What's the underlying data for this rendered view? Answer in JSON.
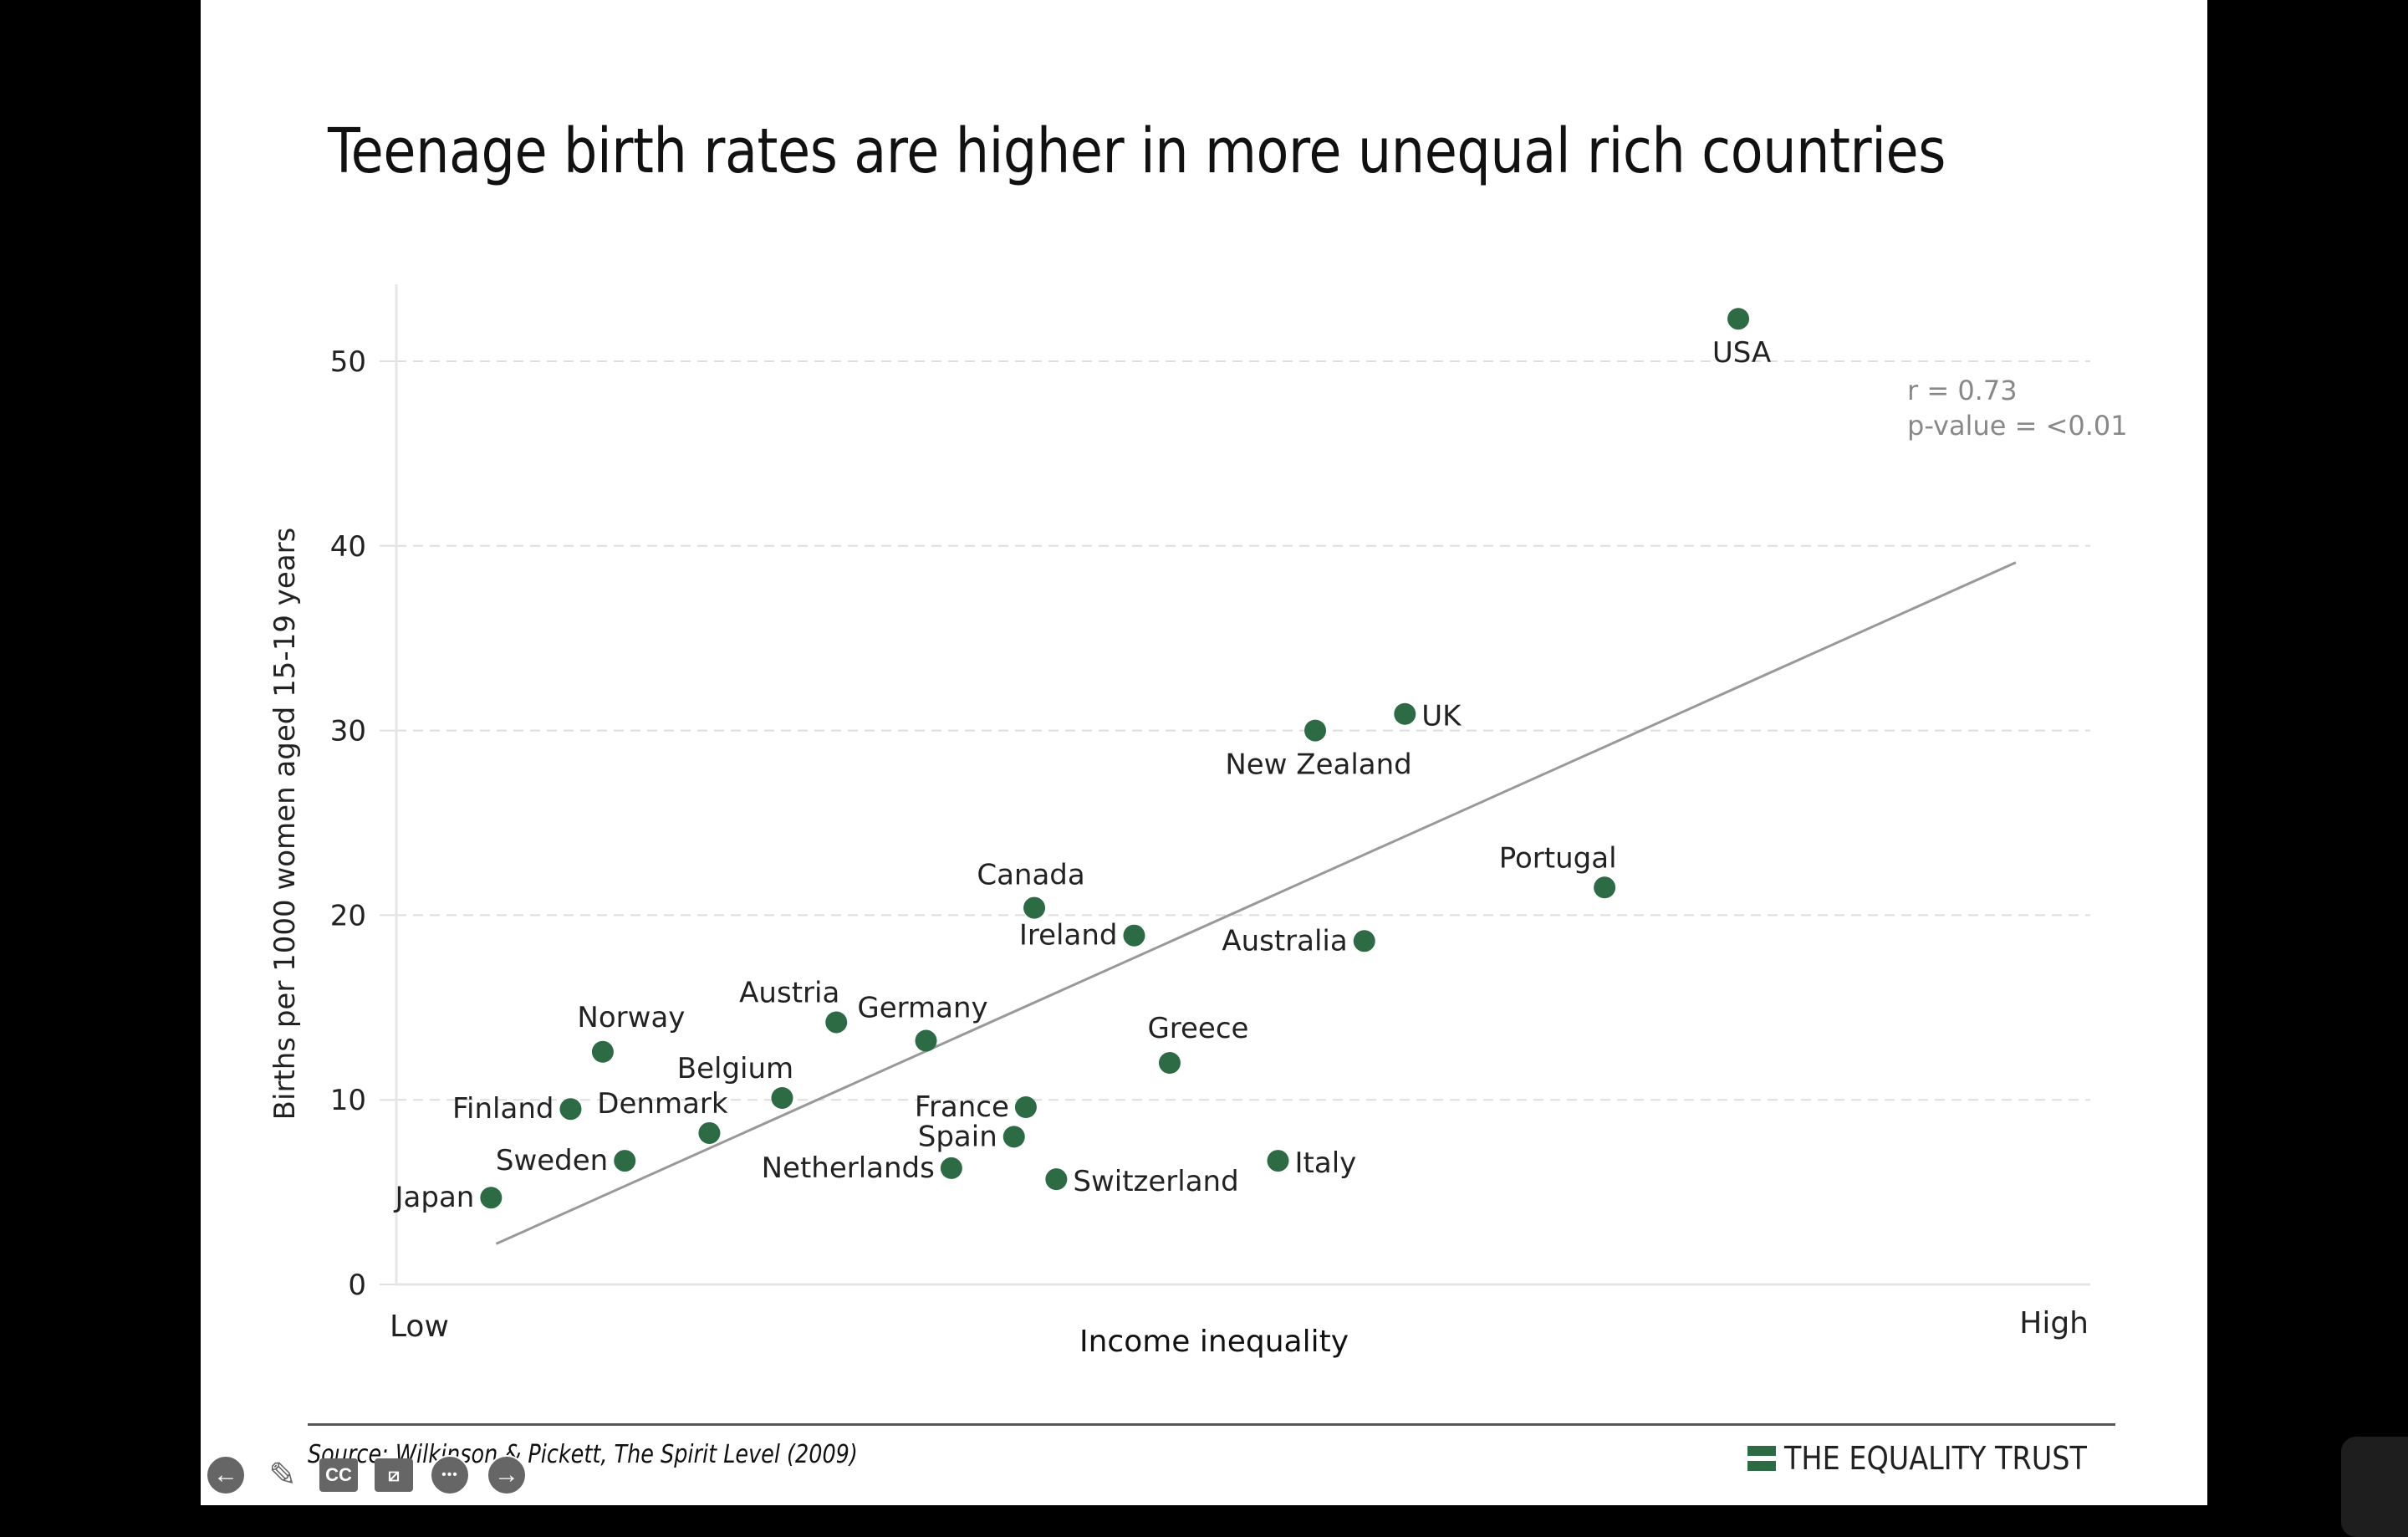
{
  "slide": {
    "title": "Teenage birth rates are higher in more unequal rich countries",
    "source": "Source: Wilkinson & Pickett, The Spirit Level (2009)",
    "brand": "THE EQUALITY TRUST",
    "colors": {
      "point": "#2d6b45",
      "trend": "#999999",
      "grid": "#dddddd",
      "stats": "#888888"
    }
  },
  "toolbar": {
    "items": [
      {
        "name": "previous-slide",
        "glyph": "←"
      },
      {
        "name": "pen",
        "glyph": "✎"
      },
      {
        "name": "captions",
        "glyph": "CC"
      },
      {
        "name": "camera-off",
        "glyph": "⧄"
      },
      {
        "name": "more-options",
        "glyph": "•••"
      },
      {
        "name": "next-slide",
        "glyph": "→"
      }
    ]
  },
  "chart_data": {
    "type": "scatter",
    "title": "Teenage birth rates are higher in more unequal rich countries",
    "xlabel": "Income inequality",
    "ylabel": "Births per 1000 women aged 15-19 years",
    "x_tick_labels": {
      "low": "Low",
      "high": "High"
    },
    "xlim": [
      0,
      100
    ],
    "ylim": [
      0,
      54
    ],
    "yticks": [
      0,
      10,
      20,
      30,
      40,
      50
    ],
    "grid": true,
    "annotation": {
      "r": "r = 0.73",
      "p": "p-value = <0.01"
    },
    "trend_line": {
      "x": [
        5.9,
        95.7
      ],
      "y": [
        2.2,
        39.1
      ]
    },
    "points": [
      {
        "label": "Japan",
        "x": 5.6,
        "y": 4.7,
        "pos": "left"
      },
      {
        "label": "Finland",
        "x": 10.3,
        "y": 9.5,
        "pos": "left"
      },
      {
        "label": "Norway",
        "x": 12.2,
        "y": 12.6,
        "pos": "top-right"
      },
      {
        "label": "Sweden",
        "x": 13.5,
        "y": 6.7,
        "pos": "left"
      },
      {
        "label": "Denmark",
        "x": 18.5,
        "y": 8.2,
        "pos": "top-left"
      },
      {
        "label": "Belgium",
        "x": 22.8,
        "y": 10.1,
        "pos": "top-left"
      },
      {
        "label": "Austria",
        "x": 26.0,
        "y": 14.2,
        "pos": "top-left"
      },
      {
        "label": "Germany",
        "x": 31.3,
        "y": 13.2,
        "pos": "top"
      },
      {
        "label": "Netherlands",
        "x": 32.8,
        "y": 6.3,
        "pos": "left"
      },
      {
        "label": "Spain",
        "x": 36.5,
        "y": 8.0,
        "pos": "left"
      },
      {
        "label": "France",
        "x": 37.2,
        "y": 9.6,
        "pos": "left"
      },
      {
        "label": "Canada",
        "x": 37.7,
        "y": 20.4,
        "pos": "top"
      },
      {
        "label": "Switzerland",
        "x": 39.0,
        "y": 5.7,
        "pos": "right"
      },
      {
        "label": "Ireland",
        "x": 43.6,
        "y": 18.9,
        "pos": "left"
      },
      {
        "label": "Greece",
        "x": 45.7,
        "y": 12.0,
        "pos": "top-right"
      },
      {
        "label": "Italy",
        "x": 52.1,
        "y": 6.7,
        "pos": "right"
      },
      {
        "label": "New Zealand",
        "x": 54.3,
        "y": 30.0,
        "pos": "bottom"
      },
      {
        "label": "Australia",
        "x": 57.2,
        "y": 18.6,
        "pos": "left"
      },
      {
        "label": "UK",
        "x": 59.6,
        "y": 30.9,
        "pos": "right"
      },
      {
        "label": "Portugal",
        "x": 71.4,
        "y": 21.5,
        "pos": "top-left"
      },
      {
        "label": "USA",
        "x": 79.3,
        "y": 52.3,
        "pos": "bottom"
      }
    ]
  }
}
